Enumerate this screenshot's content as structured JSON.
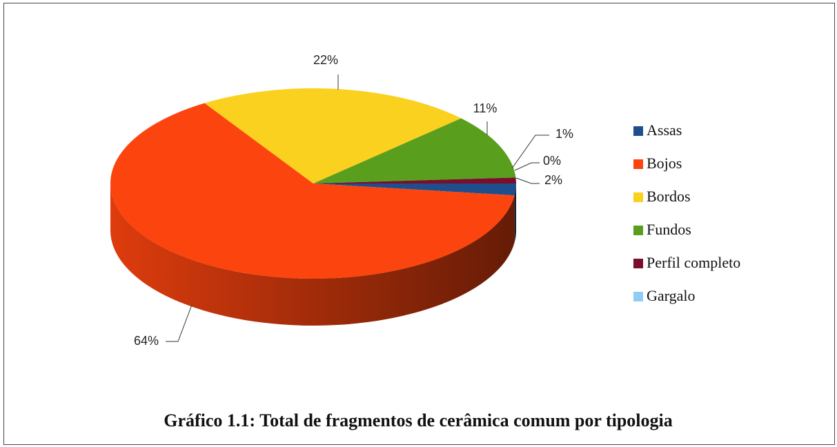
{
  "chart_data": {
    "type": "pie",
    "title": "Gráfico 1.1: Total de fragmentos de cerâmica comum por tipologia",
    "categories": [
      "Assas",
      "Bojos",
      "Bordos",
      "Fundos",
      "Perfil completo",
      "Gargalo"
    ],
    "values": [
      2,
      64,
      22,
      11,
      1,
      0
    ],
    "value_labels": [
      "2%",
      "64%",
      "22%",
      "11%",
      "1%",
      "0%"
    ],
    "colors": [
      "#1f4e8c",
      "#fc440f",
      "#fad11f",
      "#5a9e1e",
      "#7a0e2b",
      "#8fcdf5"
    ],
    "legend": "right"
  }
}
